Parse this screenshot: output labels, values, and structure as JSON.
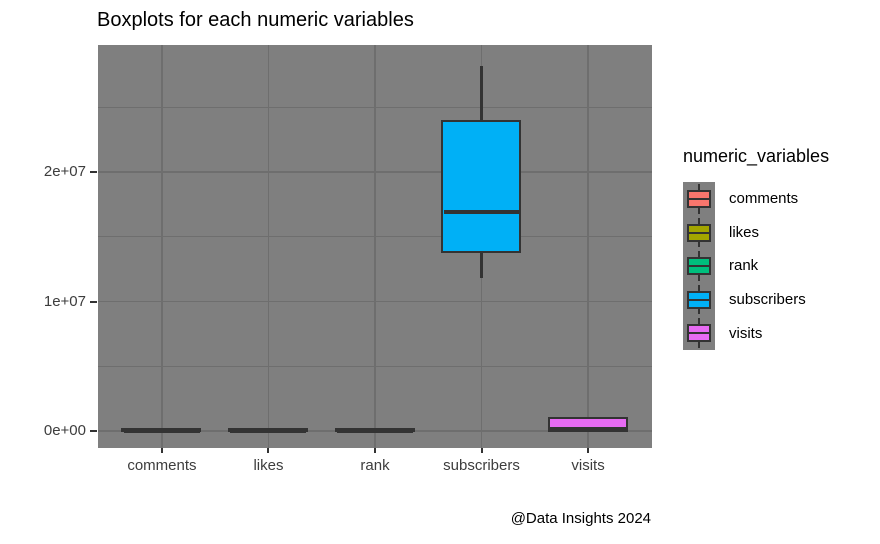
{
  "title": "Boxplots for each numeric variables",
  "caption": "@Data Insights 2024",
  "legend": {
    "title": "numeric_variables",
    "position": "right",
    "items": [
      {
        "label": "comments",
        "color": "#F8766D"
      },
      {
        "label": "likes",
        "color": "#A3A500"
      },
      {
        "label": "rank",
        "color": "#00BF7D"
      },
      {
        "label": "subscribers",
        "color": "#00B0F6"
      },
      {
        "label": "visits",
        "color": "#E76BF3"
      }
    ]
  },
  "chart_data": {
    "type": "boxplot",
    "title": "Boxplots for each numeric variables",
    "categories": [
      "comments",
      "likes",
      "rank",
      "subscribers",
      "visits"
    ],
    "series": [
      {
        "name": "comments",
        "color": "#F8766D",
        "min": 0,
        "q1": 0,
        "median": 0,
        "q3": 0,
        "max": 0,
        "note": "box collapsed to a flat dark bar at 0 on the 1e+07 scale"
      },
      {
        "name": "likes",
        "color": "#A3A500",
        "min": 0,
        "q1": 0,
        "median": 0,
        "q3": 0,
        "max": 0,
        "note": "box collapsed to a flat dark bar at 0 on the 1e+07 scale"
      },
      {
        "name": "rank",
        "color": "#00BF7D",
        "min": 0,
        "q1": 0,
        "median": 0,
        "q3": 0,
        "max": 0,
        "note": "box collapsed to a flat dark bar at 0 on the 1e+07 scale"
      },
      {
        "name": "subscribers",
        "color": "#00B0F6",
        "min": 11800000,
        "q1": 13850000,
        "median": 16900000,
        "q3": 23850000,
        "max": 28200000
      },
      {
        "name": "visits",
        "color": "#E76BF3",
        "min": 0,
        "q1": 20000,
        "median": 150000,
        "q3": 880000,
        "max": 880000,
        "note": "thin magenta box just above 0; whiskers not resolvable"
      }
    ],
    "y_axis": {
      "tick_labels": [
        "0e+00",
        "1e+07",
        "2e+07"
      ],
      "tick_values": [
        0,
        10000000,
        20000000
      ],
      "minor_tick_values": [
        5000000,
        15000000,
        25000000
      ],
      "ylim": [
        -1313000,
        29810000
      ]
    },
    "x_axis": {
      "tick_labels": [
        "comments",
        "likes",
        "rank",
        "subscribers",
        "visits"
      ]
    },
    "legend_title": "numeric_variables",
    "legend_position": "right",
    "grid": true,
    "panel_background": "#7F7F7F",
    "grid_color": "#6E6E6E",
    "box_outline_color": "#333333",
    "page_background": "#FFFFFF"
  }
}
